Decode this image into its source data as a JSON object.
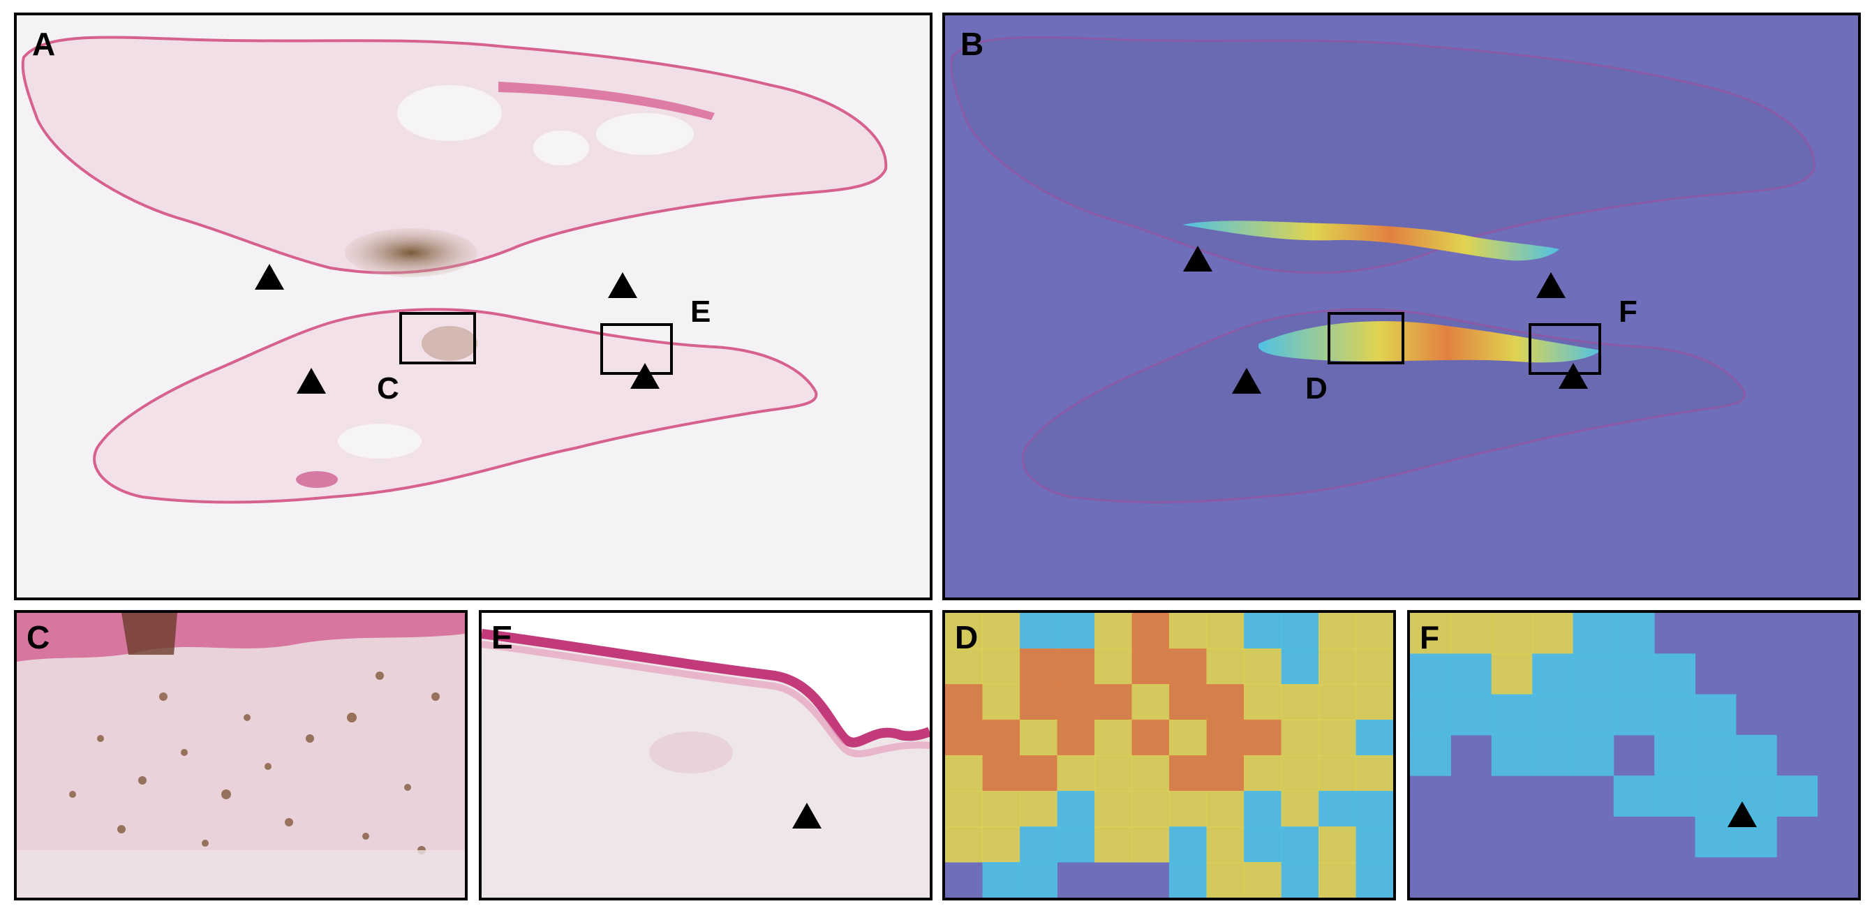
{
  "panels": {
    "A": {
      "label": "A"
    },
    "B": {
      "label": "B"
    },
    "C": {
      "label": "C"
    },
    "D": {
      "label": "D"
    },
    "E": {
      "label": "E"
    },
    "F": {
      "label": "F"
    }
  },
  "region_labels": {
    "a_c": "C",
    "a_e": "E",
    "b_d": "D",
    "b_f": "F"
  },
  "colors": {
    "he_background": "#f3f1f3",
    "he_tissue": "#f1dde6",
    "he_edge": "#d0558c",
    "heatmap_background": "#6e6ebb",
    "heatmap_high": "#e8823a",
    "heatmap_mid": "#e6d94b",
    "heatmap_low": "#4fc6e6",
    "marker": "#000000"
  }
}
